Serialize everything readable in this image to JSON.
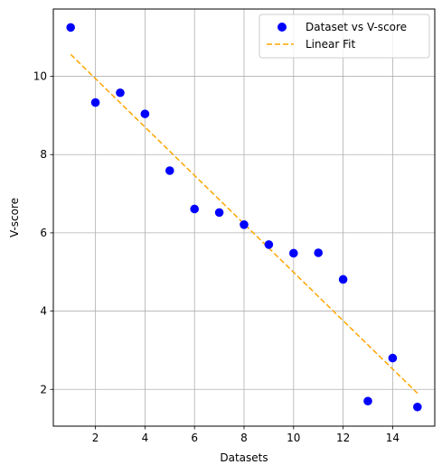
{
  "chart_data": {
    "type": "scatter",
    "xlabel": "Datasets",
    "ylabel": "V-score",
    "xlim": [
      0.3,
      15.7
    ],
    "ylim": [
      1.06,
      11.72
    ],
    "xticks": [
      2,
      4,
      6,
      8,
      10,
      12,
      14
    ],
    "yticks": [
      2,
      4,
      6,
      8,
      10
    ],
    "grid": true,
    "legend_position": "top-right",
    "series": [
      {
        "name": "Dataset vs V-score",
        "kind": "scatter",
        "color": "#0000ff",
        "x": [
          1,
          2,
          3,
          4,
          5,
          6,
          7,
          8,
          9,
          10,
          11,
          12,
          13,
          14,
          15
        ],
        "y": [
          11.25,
          9.33,
          9.58,
          9.04,
          7.59,
          6.61,
          6.52,
          6.21,
          5.7,
          5.48,
          5.49,
          4.81,
          1.7,
          2.8,
          1.55
        ]
      },
      {
        "name": "Linear Fit",
        "kind": "line",
        "style": "dashed",
        "color": "#ffa500",
        "x": [
          1,
          15
        ],
        "y": [
          10.56,
          1.9
        ]
      }
    ]
  }
}
